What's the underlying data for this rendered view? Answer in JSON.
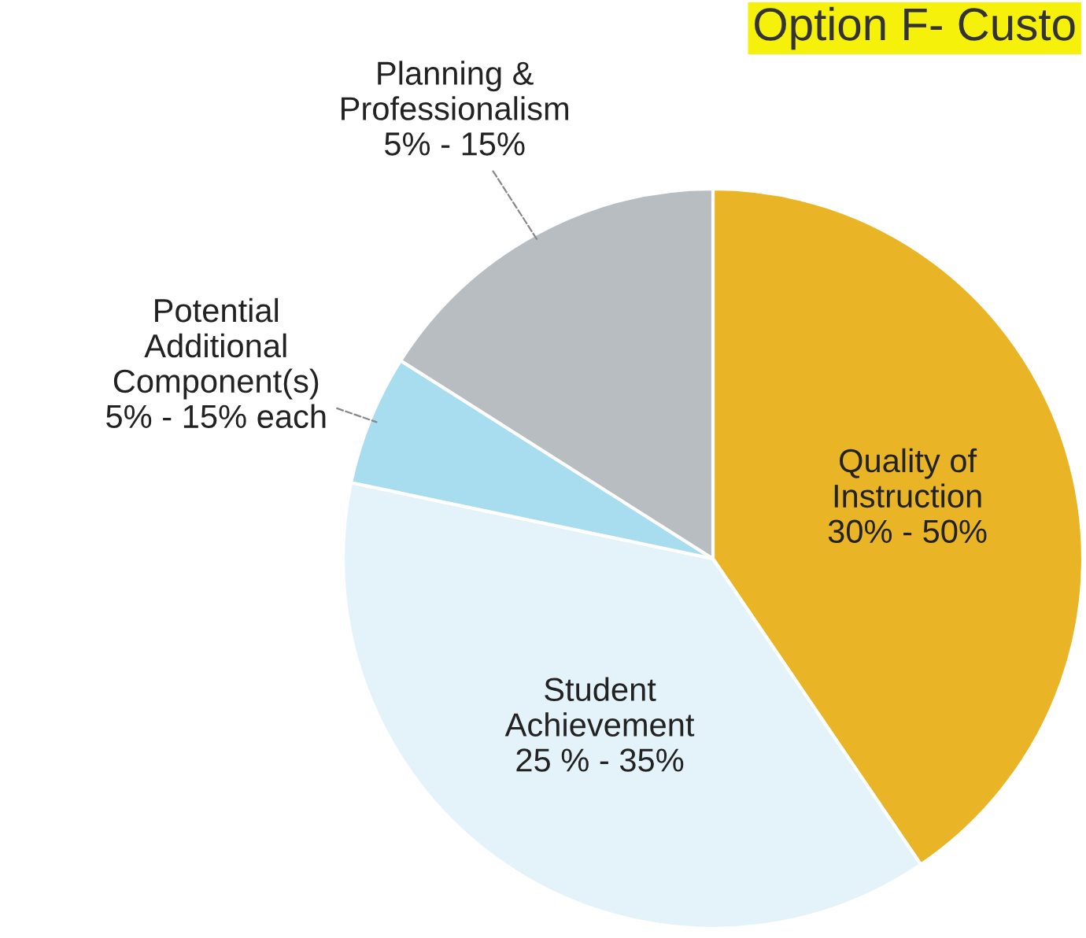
{
  "chart_data": {
    "type": "pie",
    "title": "Option F- Custo",
    "categories": [
      "Quality of\nInstruction\n30% - 50%",
      "Student\nAchievement\n25 % - 35%",
      "Potential\nAdditional\nComponent(s)\n5% - 15% each",
      "Planning &\nProfessionalism\n5% - 15%"
    ],
    "values": [
      40.5,
      37.8,
      5.7,
      16.0
    ],
    "colors": [
      "#e9b526",
      "#e4f3fa",
      "#a8dcef",
      "#b8bdc2"
    ]
  }
}
